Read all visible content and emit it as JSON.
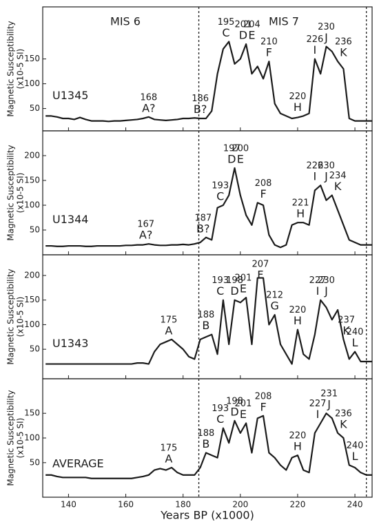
{
  "chart_data": [
    {
      "type": "line",
      "title": "U1345",
      "period_labels": [
        "MIS 6",
        "MIS 7"
      ],
      "ylabel": "Magnetic Susceptibility",
      "ylabel_unit": "(x10-5 SI)",
      "xlim": [
        131,
        246
      ],
      "xticks": [
        140,
        160,
        180,
        200,
        220,
        240
      ],
      "ylim": [
        5,
        255
      ],
      "yticks": [
        50,
        100,
        150
      ],
      "boundaries": [
        185.5,
        244
      ],
      "x": [
        132,
        134,
        136,
        138,
        140,
        142,
        144,
        146,
        148,
        150,
        152,
        154,
        156,
        158,
        160,
        162,
        164,
        166,
        168,
        170,
        172,
        174,
        176,
        178,
        180,
        182,
        184,
        186,
        188,
        190,
        192,
        194,
        196,
        198,
        200,
        202,
        204,
        206,
        208,
        210,
        212,
        214,
        216,
        218,
        220,
        222,
        224,
        226,
        228,
        230,
        232,
        234,
        236,
        238,
        240,
        242,
        244,
        246
      ],
      "series": [
        {
          "color": "#1a1a1a",
          "values": [
            35,
            35,
            33,
            30,
            30,
            28,
            32,
            28,
            25,
            25,
            25,
            24,
            25,
            25,
            26,
            27,
            28,
            30,
            33,
            28,
            27,
            26,
            27,
            28,
            30,
            30,
            31,
            30,
            30,
            45,
            120,
            170,
            185,
            140,
            150,
            180,
            120,
            135,
            110,
            145,
            60,
            40,
            35,
            30,
            32,
            35,
            40,
            150,
            120,
            175,
            165,
            145,
            130,
            30,
            25,
            25,
            25,
            25
          ]
        }
      ],
      "annotations": [
        {
          "age": 168,
          "letter": "A?"
        },
        {
          "age": 186,
          "letter": "B?"
        },
        {
          "age": 195,
          "letter": "C"
        },
        {
          "age": 201,
          "letter": "D"
        },
        {
          "age": 204,
          "letter": "E"
        },
        {
          "age": 210,
          "letter": "F"
        },
        {
          "age": 220,
          "letter": "H"
        },
        {
          "age": 226,
          "letter": "I"
        },
        {
          "age": 230,
          "letter": "J"
        },
        {
          "age": 236,
          "letter": "K"
        }
      ]
    },
    {
      "type": "line",
      "title": "U1344",
      "ylabel": "Magnetic Susceptibility",
      "ylabel_unit": "(x10-5 SI)",
      "xlim": [
        131,
        246
      ],
      "xticks": [
        140,
        160,
        180,
        200,
        220,
        240
      ],
      "ylim": [
        0,
        250
      ],
      "yticks": [
        50,
        100,
        150,
        200
      ],
      "boundaries": [
        185.5,
        244
      ],
      "x": [
        132,
        134,
        136,
        138,
        140,
        142,
        144,
        146,
        148,
        150,
        152,
        154,
        156,
        158,
        160,
        162,
        164,
        166,
        168,
        170,
        172,
        174,
        176,
        178,
        180,
        182,
        184,
        186,
        188,
        190,
        192,
        194,
        196,
        198,
        200,
        202,
        204,
        206,
        208,
        210,
        212,
        214,
        216,
        218,
        220,
        222,
        224,
        226,
        228,
        230,
        232,
        234,
        236,
        238,
        240,
        242,
        244,
        246
      ],
      "series": [
        {
          "color": "#1a1a1a",
          "values": [
            18,
            18,
            17,
            17,
            18,
            18,
            18,
            17,
            17,
            18,
            18,
            18,
            18,
            18,
            19,
            19,
            20,
            20,
            22,
            20,
            19,
            19,
            20,
            20,
            21,
            20,
            22,
            25,
            35,
            30,
            95,
            100,
            120,
            175,
            120,
            80,
            60,
            105,
            100,
            40,
            20,
            15,
            20,
            60,
            65,
            65,
            60,
            130,
            140,
            110,
            120,
            90,
            60,
            30,
            25,
            20,
            20,
            20
          ]
        }
      ],
      "annotations": [
        {
          "age": 167,
          "letter": "A?"
        },
        {
          "age": 187,
          "letter": "B?"
        },
        {
          "age": 193,
          "letter": "C"
        },
        {
          "age": 197,
          "letter": "D"
        },
        {
          "age": 200,
          "letter": "E"
        },
        {
          "age": 208,
          "letter": "F"
        },
        {
          "age": 221,
          "letter": "H"
        },
        {
          "age": 226,
          "letter": "I"
        },
        {
          "age": 230,
          "letter": "J"
        },
        {
          "age": 234,
          "letter": "K"
        }
      ]
    },
    {
      "type": "line",
      "title": "U1343",
      "ylabel": "Magnetic Susceptibility",
      "ylabel_unit": "(x10-5 SI)",
      "xlim": [
        131,
        246
      ],
      "xticks": [
        140,
        160,
        180,
        200,
        220,
        240
      ],
      "ylim": [
        -10,
        242
      ],
      "yticks": [
        50,
        100,
        150,
        200
      ],
      "boundaries": [
        185.5,
        244
      ],
      "x": [
        132,
        134,
        136,
        138,
        140,
        142,
        144,
        146,
        148,
        150,
        152,
        154,
        156,
        158,
        160,
        162,
        164,
        166,
        168,
        170,
        172,
        174,
        176,
        178,
        180,
        182,
        184,
        186,
        188,
        190,
        192,
        194,
        196,
        198,
        200,
        202,
        204,
        206,
        208,
        210,
        212,
        214,
        216,
        218,
        220,
        222,
        224,
        226,
        228,
        230,
        232,
        234,
        236,
        238,
        240,
        242,
        244,
        246
      ],
      "series": [
        {
          "color": "#1a1a1a",
          "values": [
            20,
            20,
            20,
            20,
            20,
            20,
            20,
            20,
            20,
            20,
            20,
            20,
            20,
            20,
            20,
            20,
            22,
            22,
            20,
            45,
            60,
            65,
            70,
            60,
            50,
            35,
            30,
            70,
            75,
            80,
            40,
            150,
            60,
            150,
            145,
            155,
            60,
            195,
            195,
            100,
            120,
            60,
            40,
            20,
            90,
            40,
            30,
            80,
            150,
            135,
            110,
            130,
            70,
            30,
            45,
            25,
            25,
            25
          ]
        }
      ],
      "annotations": [
        {
          "age": 175,
          "letter": "A"
        },
        {
          "age": 188,
          "letter": "B"
        },
        {
          "age": 193,
          "letter": "C"
        },
        {
          "age": 198,
          "letter": "D"
        },
        {
          "age": 201,
          "letter": "E"
        },
        {
          "age": 207,
          "letter": "F"
        },
        {
          "age": 212,
          "letter": "G"
        },
        {
          "age": 220,
          "letter": "H"
        },
        {
          "age": 227,
          "letter": "I"
        },
        {
          "age": 230,
          "letter": "J"
        },
        {
          "age": 237,
          "letter": "K"
        },
        {
          "age": 240,
          "letter": "L"
        }
      ]
    },
    {
      "type": "line",
      "title": "AVERAGE",
      "ylabel": "Magnetic Susceptibility",
      "ylabel_unit": "(x10-5 SI)",
      "xlabel": "Years BP (x1000)",
      "xlim": [
        131,
        246
      ],
      "xticks": [
        140,
        160,
        180,
        200,
        220,
        240
      ],
      "ylim": [
        -20,
        220
      ],
      "yticks": [
        50,
        100,
        150
      ],
      "boundaries": [
        185.5,
        244
      ],
      "x": [
        132,
        134,
        136,
        138,
        140,
        142,
        144,
        146,
        148,
        150,
        152,
        154,
        156,
        158,
        160,
        162,
        164,
        166,
        168,
        170,
        172,
        174,
        176,
        178,
        180,
        182,
        184,
        186,
        188,
        190,
        192,
        194,
        196,
        198,
        200,
        202,
        204,
        206,
        208,
        210,
        212,
        214,
        216,
        218,
        220,
        222,
        224,
        226,
        228,
        230,
        232,
        234,
        236,
        238,
        240,
        242,
        244,
        246
      ],
      "series": [
        {
          "color": "#1a1a1a",
          "values": [
            25,
            25,
            22,
            20,
            20,
            20,
            20,
            20,
            18,
            18,
            18,
            18,
            18,
            18,
            18,
            18,
            20,
            22,
            25,
            35,
            38,
            35,
            40,
            30,
            25,
            25,
            25,
            40,
            70,
            65,
            60,
            120,
            90,
            135,
            110,
            130,
            70,
            140,
            145,
            70,
            60,
            45,
            35,
            60,
            65,
            35,
            30,
            110,
            130,
            150,
            140,
            110,
            100,
            45,
            40,
            30,
            25,
            25
          ]
        }
      ],
      "annotations": [
        {
          "age": 175,
          "letter": "A"
        },
        {
          "age": 188,
          "letter": "B"
        },
        {
          "age": 193,
          "letter": "C"
        },
        {
          "age": 198,
          "letter": "D"
        },
        {
          "age": 201,
          "letter": "E"
        },
        {
          "age": 208,
          "letter": "F"
        },
        {
          "age": 220,
          "letter": "H"
        },
        {
          "age": 227,
          "letter": "I"
        },
        {
          "age": 231,
          "letter": "J"
        },
        {
          "age": 236,
          "letter": "K"
        },
        {
          "age": 240,
          "letter": "L"
        }
      ]
    }
  ]
}
